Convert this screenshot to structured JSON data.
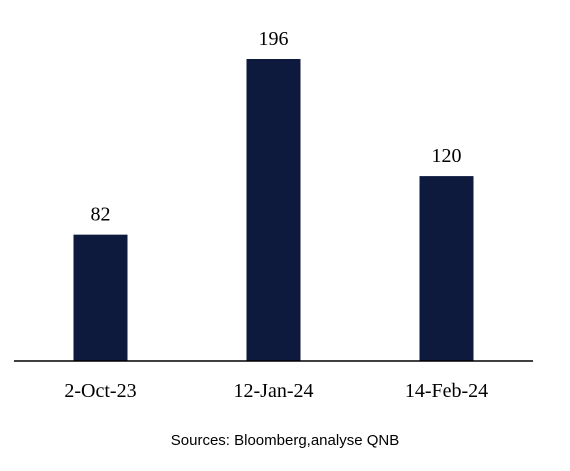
{
  "chart_data": {
    "type": "bar",
    "categories": [
      "2-Oct-23",
      "12-Jan-24",
      "14-Feb-24"
    ],
    "values": [
      82,
      196,
      120
    ],
    "title": "",
    "xlabel": "",
    "ylabel": "",
    "ylim": [
      0,
      196
    ],
    "grid": false,
    "legend": "none",
    "bar_color": "#0d1a3d",
    "data_labels": true
  },
  "source": "Sources: Bloomberg,analyse QNB"
}
